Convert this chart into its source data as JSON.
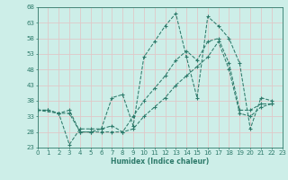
{
  "xlabel": "Humidex (Indice chaleur)",
  "xlim": [
    0,
    23
  ],
  "ylim": [
    23,
    68
  ],
  "yticks": [
    23,
    28,
    33,
    38,
    43,
    48,
    53,
    58,
    63,
    68
  ],
  "xticks": [
    0,
    1,
    2,
    3,
    4,
    5,
    6,
    7,
    8,
    9,
    10,
    11,
    12,
    13,
    14,
    15,
    16,
    17,
    18,
    19,
    20,
    21,
    22,
    23
  ],
  "bg_color": "#cdeee8",
  "line_color": "#2d7a6a",
  "grid_color": "#e0c8c8",
  "series": [
    {
      "x": [
        0,
        2,
        3,
        4,
        5,
        6,
        7,
        8,
        9,
        10,
        11,
        12,
        13,
        14,
        15,
        16,
        17,
        18,
        19,
        20,
        21,
        22
      ],
      "y": [
        35,
        34,
        24,
        29,
        29,
        29,
        39,
        40,
        30,
        52,
        57,
        62,
        66,
        52,
        39,
        65,
        62,
        58,
        50,
        29,
        39,
        38
      ]
    },
    {
      "x": [
        0,
        1,
        2,
        3,
        4,
        5,
        6,
        7,
        8,
        9,
        10,
        11,
        12,
        13,
        14,
        15,
        16,
        17,
        18,
        19,
        20,
        21,
        22
      ],
      "y": [
        35,
        35,
        34,
        35,
        28,
        28,
        29,
        30,
        28,
        33,
        38,
        42,
        46,
        51,
        54,
        51,
        57,
        58,
        50,
        35,
        35,
        37,
        37
      ]
    },
    {
      "x": [
        0,
        1,
        2,
        3,
        4,
        5,
        6,
        7,
        8,
        9,
        10,
        11,
        12,
        13,
        14,
        15,
        16,
        17,
        18,
        19,
        20,
        21,
        22
      ],
      "y": [
        35,
        35,
        34,
        34,
        28,
        28,
        28,
        28,
        28,
        29,
        33,
        36,
        39,
        43,
        46,
        49,
        52,
        57,
        48,
        34,
        33,
        36,
        37
      ]
    }
  ]
}
